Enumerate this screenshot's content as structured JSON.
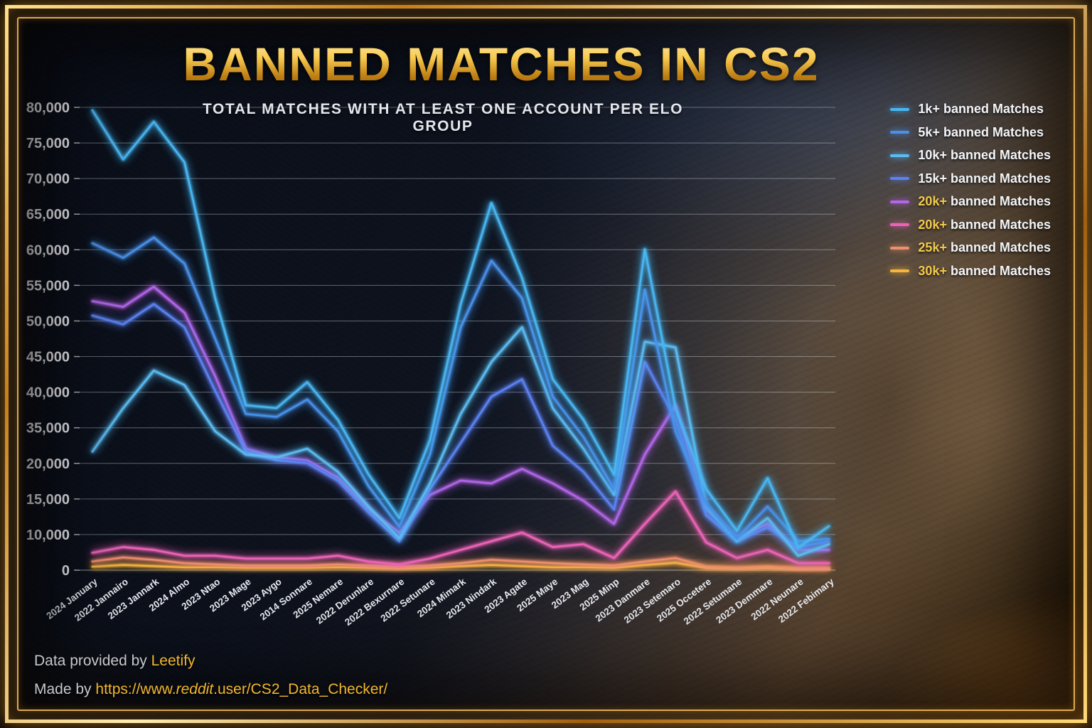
{
  "header": {
    "title": "BANNED MATCHES IN CS2",
    "subtitle": "TOTAL MATCHES WITH AT LEAST ONE ACCOUNT PER ELO GROUP"
  },
  "legend": {
    "items": [
      {
        "range": "1k+",
        "label": "banned Matches",
        "color": "#49b6f2",
        "range_color": "#f3f5f9"
      },
      {
        "range": "5k+",
        "label": "banned Matches",
        "color": "#4a90e8",
        "range_color": "#f3f5f9"
      },
      {
        "range": "10k+",
        "label": "banned Matches",
        "color": "#5bbcf2",
        "range_color": "#f3f5f9"
      },
      {
        "range": "15k+",
        "label": "banned Matches",
        "color": "#5b82f2",
        "range_color": "#f3f5f9"
      },
      {
        "range": "20k+",
        "label": "banned Matches",
        "color": "#b266e8",
        "range_color": "#f2c94c"
      },
      {
        "range": "20k+",
        "label": "banned Matches",
        "color": "#ec64b8",
        "range_color": "#f2c94c"
      },
      {
        "range": "25k+",
        "label": "banned Matches",
        "color": "#ee8f6e",
        "range_color": "#f2c94c"
      },
      {
        "range": "30k+",
        "label": "banned Matches",
        "color": "#f6b63c",
        "range_color": "#f2c94c"
      }
    ]
  },
  "footer": {
    "line1_prefix": "Data provided by ",
    "line1_link": "Leetify",
    "line2_prefix": "Made by ",
    "line2_link_parts": [
      "https://www.",
      "reddit",
      ".user/CS2_Data_Checker/"
    ]
  },
  "chart_data": {
    "type": "line",
    "title": "BANNED MATCHES IN CS2",
    "subtitle": "TOTAL MATCHES WITH AT LEAST ONE ACCOUNT PER ELO GROUP",
    "xlabel": "",
    "ylabel": "",
    "ylim": [
      0,
      80000
    ],
    "grid": true,
    "legend_position": "top-right",
    "y_tick_labels": [
      "80,000",
      "75,000",
      "70,000",
      "65,000",
      "60,000",
      "55,000",
      "50,000",
      "45,000",
      "40,000",
      "35,000",
      "20,000",
      "15,000",
      "10,000",
      "0"
    ],
    "categories": [
      "2024 January",
      "2022 Jannairo",
      "2023 Jannark",
      "2024 Almo",
      "2023 Ntao",
      "2023 Mage",
      "2023 Aygo",
      "2014 Sonnare",
      "2025 Nemare",
      "2022 Derunlare",
      "2022 Bexurnare",
      "2022 Setunare",
      "2024 Mimark",
      "2023 Nindark",
      "2023 Agate",
      "2025 Maye",
      "2023 Mag",
      "2025 Minp",
      "2023 Danmare",
      "2023 Setemaro",
      "2025 Occetere",
      "2022 Setumane",
      "2023 Demmare",
      "2022 Neunare",
      "2022 Febimary"
    ],
    "series": [
      {
        "name": "1k+ banned Matches",
        "color": "#49b6f2",
        "values": [
          79500,
          71000,
          77500,
          70500,
          47000,
          28500,
          28000,
          32500,
          26000,
          16500,
          9000,
          22500,
          46000,
          63500,
          50500,
          33000,
          26000,
          16500,
          55500,
          28000,
          14000,
          6800,
          15900,
          3900,
          7600
        ]
      },
      {
        "name": "5k+ banned Matches",
        "color": "#4a90e8",
        "values": [
          56500,
          54000,
          57500,
          53000,
          40000,
          27000,
          26500,
          29500,
          24000,
          14500,
          7500,
          20000,
          42000,
          53500,
          47000,
          30000,
          23000,
          14000,
          48500,
          24000,
          11500,
          5500,
          11000,
          5000,
          5400
        ]
      },
      {
        "name": "10k+ banned Matches",
        "color": "#5bbcf2",
        "values": [
          20500,
          28000,
          34500,
          32000,
          24000,
          20000,
          19500,
          21000,
          17000,
          11000,
          5500,
          15000,
          27000,
          36000,
          42000,
          28000,
          21000,
          13000,
          39500,
          38500,
          11000,
          5000,
          9000,
          2500,
          4500
        ]
      },
      {
        "name": "15k+ banned Matches",
        "color": "#5b82f2",
        "values": [
          44000,
          42500,
          46000,
          42000,
          31000,
          20500,
          19000,
          18500,
          15500,
          10000,
          5000,
          14000,
          22000,
          30000,
          33000,
          21500,
          17000,
          10500,
          36000,
          26000,
          9500,
          5000,
          7400,
          4000,
          5000
        ]
      },
      {
        "name": "20k+ banned Matches",
        "color": "#b266e8",
        "values": [
          46500,
          45500,
          49000,
          44500,
          33500,
          21000,
          19500,
          19000,
          16000,
          10500,
          6500,
          13000,
          15500,
          15000,
          17500,
          15000,
          12000,
          8000,
          20000,
          28500,
          10500,
          5500,
          8000,
          3500,
          3500
        ]
      },
      {
        "name": "20k+ banned Matches (2)",
        "color": "#ec64b8",
        "values": [
          3000,
          4000,
          3500,
          2500,
          2500,
          2000,
          2000,
          2000,
          2500,
          1500,
          1000,
          2000,
          3500,
          5000,
          6500,
          4000,
          4500,
          2100,
          8000,
          13600,
          4800,
          2100,
          3500,
          1200,
          1200
        ]
      },
      {
        "name": "25k+ banned Matches",
        "color": "#ee8f6e",
        "values": [
          1500,
          2200,
          1800,
          1200,
          1000,
          800,
          800,
          800,
          1000,
          800,
          600,
          800,
          1200,
          1800,
          1500,
          1200,
          1000,
          800,
          1500,
          2100,
          600,
          400,
          600,
          300,
          300
        ]
      },
      {
        "name": "30k+ banned Matches",
        "color": "#f6b63c",
        "values": [
          600,
          900,
          700,
          500,
          500,
          400,
          400,
          400,
          500,
          400,
          300,
          400,
          700,
          900,
          700,
          500,
          500,
          400,
          900,
          1300,
          400,
          300,
          400,
          250,
          300
        ]
      }
    ]
  }
}
